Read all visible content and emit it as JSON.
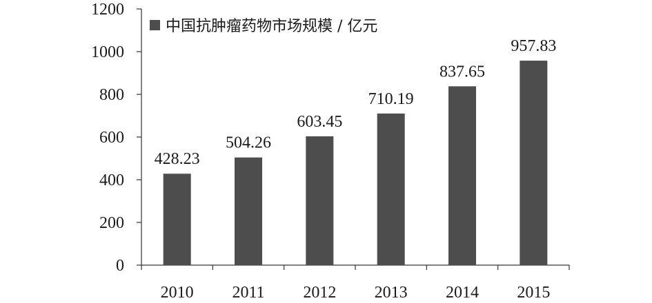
{
  "chart_data": {
    "type": "bar",
    "categories": [
      "2010",
      "2011",
      "2012",
      "2013",
      "2014",
      "2015"
    ],
    "series": [
      {
        "name": "中国抗肿瘤药物市场规模 / 亿元",
        "values": [
          428.23,
          504.26,
          603.45,
          710.19,
          837.65,
          957.83
        ],
        "value_labels": [
          "428.23",
          "504.26",
          "603.45",
          "710.19",
          "837.65",
          "957.83"
        ],
        "color": "#4d4d4d"
      }
    ],
    "ylim": [
      0,
      1200
    ],
    "yticks": [
      0,
      200,
      400,
      600,
      800,
      1000,
      1200
    ],
    "ytick_labels": [
      "0",
      "200",
      "400",
      "600",
      "800",
      "1000",
      "1200"
    ],
    "grid": false,
    "legend_position": "top-left",
    "axis_color": "#333333"
  }
}
